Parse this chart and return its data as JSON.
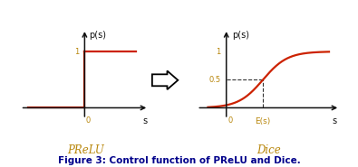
{
  "fig_width": 3.95,
  "fig_height": 1.85,
  "dpi": 100,
  "bg_color": "#ffffff",
  "curve_color": "#cc2200",
  "axis_color": "#111111",
  "dashed_color": "#333333",
  "label_color": "#b8860b",
  "caption_color": "#00008b",
  "prelu_label": "PReLU",
  "dice_label": "Dice",
  "caption": "Figure 3: Control function of PReLU and Dice.",
  "ps_label": "p(s)",
  "s_label": "s",
  "es_label": "E(s)",
  "tick_0": "0",
  "tick_1": "1",
  "tick_05": "0.5"
}
